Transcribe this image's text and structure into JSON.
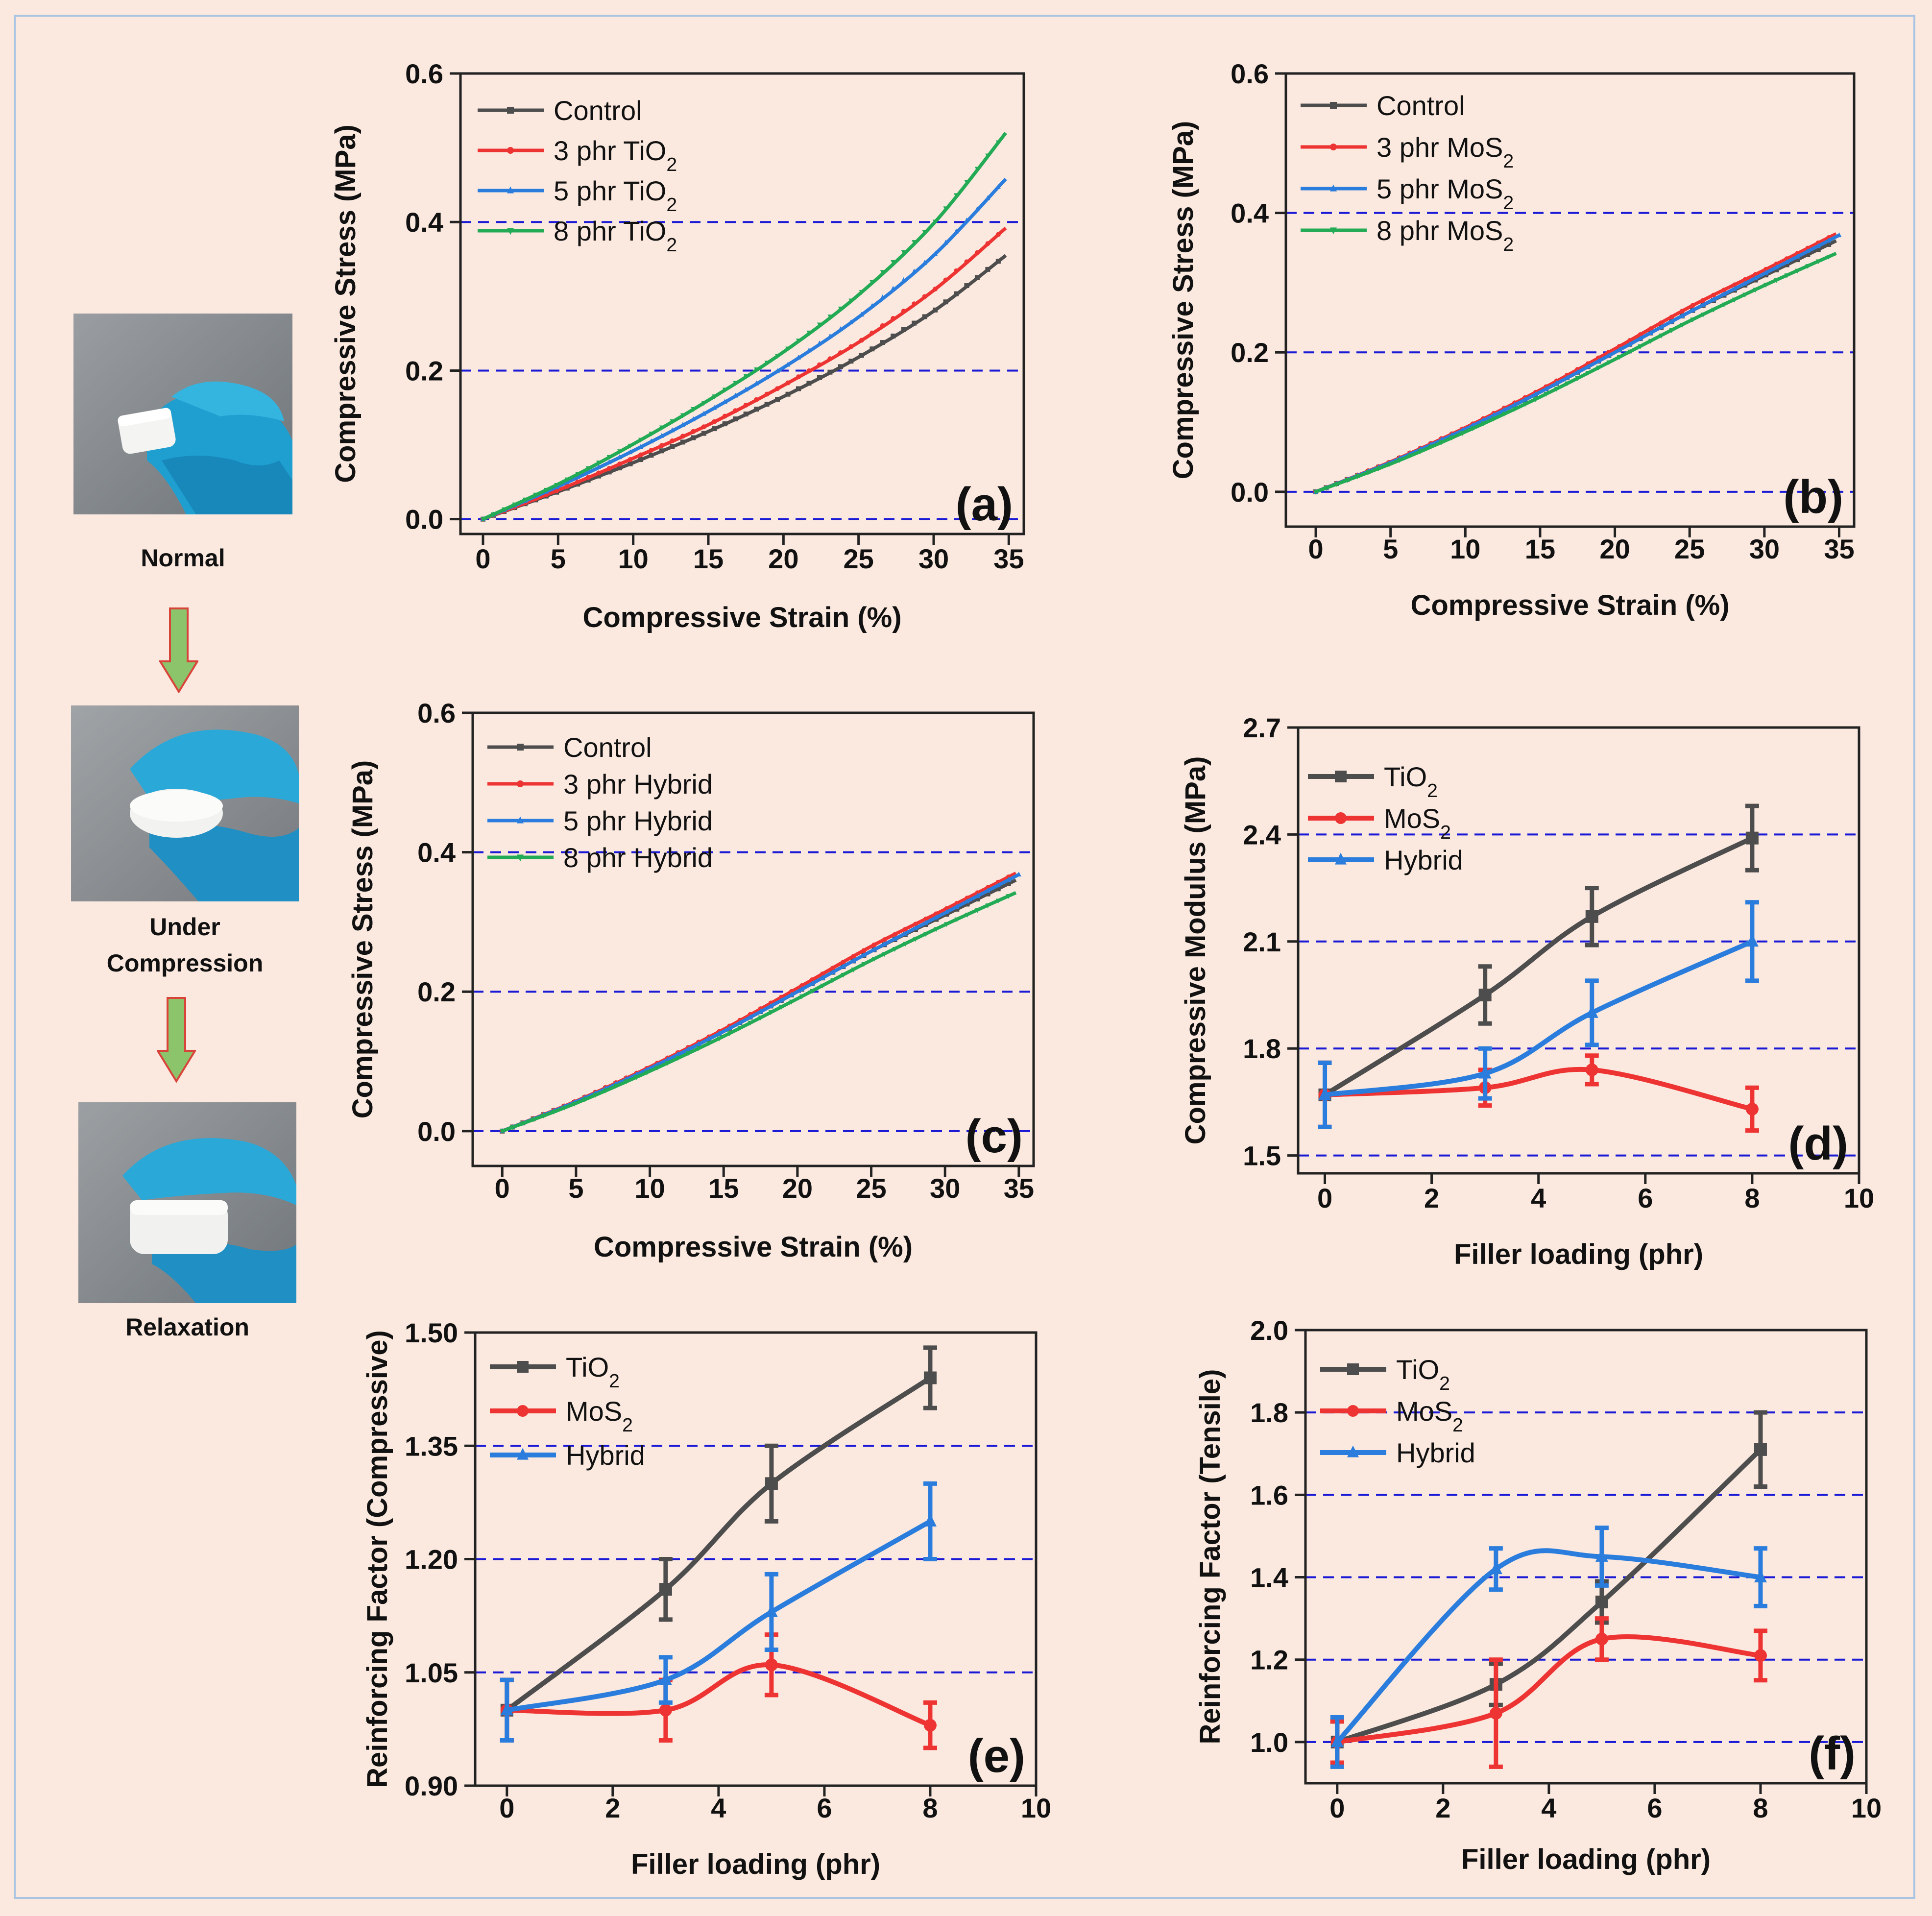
{
  "photos": [
    {
      "caption_lines": [
        "Normal"
      ]
    },
    {
      "caption_lines": [
        "Under",
        "Compression"
      ]
    },
    {
      "caption_lines": [
        "Relaxation"
      ]
    }
  ],
  "colors": {
    "background": "#fbe9df",
    "border": "#a9c3e3",
    "grid": "#1a1ad6",
    "black": "#4d4d4d",
    "red": "#ee3333",
    "blue": "#2a7ddc",
    "green": "#22aa55",
    "arrow_fill": "#8cc46b",
    "arrow_stroke": "#d9443a"
  },
  "chart_data": [
    {
      "id": "a",
      "type": "line",
      "panel_label": "(a)",
      "xlabel": "Compressive Strain (%)",
      "ylabel": "Compressive Stress (MPa)",
      "xlim": [
        -1.5,
        36
      ],
      "ylim": [
        -0.02,
        0.6
      ],
      "xticks": [
        0,
        5,
        10,
        15,
        20,
        25,
        30,
        35
      ],
      "yticks": [
        0.0,
        0.2,
        0.4,
        0.6
      ],
      "ytick_labels": [
        "0.0",
        "0.2",
        "0.4",
        "0.6"
      ],
      "hgrid": [
        0.0,
        0.2,
        0.4
      ],
      "grid": "dashed-horizontal",
      "legend": "top-left",
      "series": [
        {
          "name": "Control",
          "color": "black",
          "marker": "square",
          "x": [
            0,
            5,
            10,
            15,
            20,
            25,
            30,
            34.8
          ],
          "y": [
            0,
            0.037,
            0.076,
            0.118,
            0.165,
            0.218,
            0.28,
            0.355
          ]
        },
        {
          "name": "3 phr TiO2",
          "color": "red",
          "marker": "circle",
          "x": [
            0,
            5,
            10,
            15,
            20,
            25,
            30,
            34.8
          ],
          "y": [
            0,
            0.039,
            0.082,
            0.127,
            0.18,
            0.238,
            0.308,
            0.392
          ]
        },
        {
          "name": "5 phr TiO2",
          "color": "blue",
          "marker": "triangle",
          "x": [
            0,
            5,
            10,
            15,
            20,
            25,
            30,
            34.8
          ],
          "y": [
            0,
            0.044,
            0.092,
            0.145,
            0.204,
            0.272,
            0.355,
            0.458
          ]
        },
        {
          "name": "8 phr TiO2",
          "color": "green",
          "marker": "tri-down",
          "x": [
            0,
            5,
            10,
            15,
            20,
            25,
            30,
            34.8
          ],
          "y": [
            0,
            0.047,
            0.101,
            0.16,
            0.225,
            0.302,
            0.398,
            0.52
          ]
        }
      ]
    },
    {
      "id": "b",
      "type": "line",
      "panel_label": "(b)",
      "xlabel": "Compressive Strain (%)",
      "ylabel": "Compressive Stress (MPa)",
      "xlim": [
        -2,
        36
      ],
      "ylim": [
        -0.05,
        0.6
      ],
      "xticks": [
        0,
        5,
        10,
        15,
        20,
        25,
        30,
        35
      ],
      "yticks": [
        0.0,
        0.2,
        0.4,
        0.6
      ],
      "ytick_labels": [
        "0.0",
        "0.2",
        "0.4",
        "0.6"
      ],
      "hgrid": [
        0.0,
        0.2,
        0.4
      ],
      "grid": "dashed-horizontal",
      "legend": "top-left",
      "series": [
        {
          "name": "Control",
          "color": "black",
          "marker": "square",
          "x": [
            0,
            5,
            10,
            15,
            20,
            25,
            30,
            34.8
          ],
          "y": [
            0,
            0.042,
            0.09,
            0.143,
            0.2,
            0.258,
            0.31,
            0.36
          ]
        },
        {
          "name": "3 phr MoS2",
          "color": "red",
          "marker": "circle",
          "x": [
            0,
            5,
            10,
            15,
            20,
            25,
            30,
            34.8
          ],
          "y": [
            0,
            0.043,
            0.092,
            0.146,
            0.205,
            0.265,
            0.318,
            0.37
          ]
        },
        {
          "name": "5 phr MoS2",
          "color": "blue",
          "marker": "triangle",
          "x": [
            0,
            5,
            10,
            15,
            20,
            25,
            30,
            35
          ],
          "y": [
            0,
            0.042,
            0.09,
            0.143,
            0.2,
            0.258,
            0.313,
            0.368
          ]
        },
        {
          "name": "8 phr MoS2",
          "color": "green",
          "marker": "tri-down",
          "x": [
            0,
            5,
            10,
            15,
            20,
            25,
            30,
            34.8
          ],
          "y": [
            0,
            0.04,
            0.086,
            0.136,
            0.19,
            0.245,
            0.296,
            0.342
          ]
        }
      ]
    },
    {
      "id": "c",
      "type": "line",
      "panel_label": "(c)",
      "xlabel": "Compressive Strain (%)",
      "ylabel": "Compressive Stress (MPa)",
      "xlim": [
        -2,
        36
      ],
      "ylim": [
        -0.05,
        0.6
      ],
      "xticks": [
        0,
        5,
        10,
        15,
        20,
        25,
        30,
        35
      ],
      "yticks": [
        0.0,
        0.2,
        0.4,
        0.6
      ],
      "ytick_labels": [
        "0.0",
        "0.2",
        "0.4",
        "0.6"
      ],
      "hgrid": [
        0.0,
        0.2,
        0.4
      ],
      "grid": "dashed-horizontal",
      "legend": "top-left",
      "series": [
        {
          "name": "Control",
          "color": "black",
          "marker": "square",
          "x": [
            0,
            5,
            10,
            15,
            20,
            25,
            30,
            34.8
          ],
          "y": [
            0,
            0.042,
            0.09,
            0.143,
            0.2,
            0.258,
            0.31,
            0.36
          ]
        },
        {
          "name": "3 phr Hybrid",
          "color": "red",
          "marker": "circle",
          "x": [
            0,
            5,
            10,
            15,
            20,
            25,
            30,
            34.8
          ],
          "y": [
            0,
            0.043,
            0.092,
            0.146,
            0.205,
            0.265,
            0.318,
            0.37
          ]
        },
        {
          "name": "5 phr Hybrid",
          "color": "blue",
          "marker": "triangle",
          "x": [
            0,
            5,
            10,
            15,
            20,
            25,
            30,
            35
          ],
          "y": [
            0,
            0.042,
            0.09,
            0.143,
            0.2,
            0.258,
            0.313,
            0.368
          ]
        },
        {
          "name": "8 phr Hybrid",
          "color": "green",
          "marker": "tri-down",
          "x": [
            0,
            5,
            10,
            15,
            20,
            25,
            30,
            34.8
          ],
          "y": [
            0,
            0.04,
            0.086,
            0.136,
            0.19,
            0.245,
            0.296,
            0.342
          ]
        }
      ]
    },
    {
      "id": "d",
      "type": "line",
      "panel_label": "(d)",
      "xlabel": "Filler loading (phr)",
      "ylabel": "Compressive Modulus (MPa)",
      "xlim": [
        -0.5,
        10
      ],
      "ylim": [
        1.45,
        2.7
      ],
      "xticks": [
        0,
        2,
        4,
        6,
        8,
        10
      ],
      "yticks": [
        1.5,
        1.8,
        2.1,
        2.4,
        2.7
      ],
      "ytick_labels": [
        "1.5",
        "1.8",
        "2.1",
        "2.4",
        "2.7"
      ],
      "hgrid": [
        1.5,
        1.8,
        2.1,
        2.4
      ],
      "grid": "dashed-horizontal",
      "legend": "top-left",
      "series": [
        {
          "name": "TiO2",
          "color": "black",
          "marker": "square",
          "x": [
            0,
            3,
            5,
            8
          ],
          "y": [
            1.67,
            1.95,
            2.17,
            2.39
          ],
          "err": [
            0.09,
            0.08,
            0.08,
            0.09
          ]
        },
        {
          "name": "MoS2",
          "color": "red",
          "marker": "circle",
          "x": [
            0,
            3,
            5,
            8
          ],
          "y": [
            1.67,
            1.69,
            1.74,
            1.63
          ],
          "err": [
            0.09,
            0.05,
            0.04,
            0.06
          ]
        },
        {
          "name": "Hybrid",
          "color": "blue",
          "marker": "triangle",
          "x": [
            0,
            3,
            5,
            8
          ],
          "y": [
            1.67,
            1.73,
            1.9,
            2.1
          ],
          "err": [
            0.09,
            0.07,
            0.09,
            0.11
          ]
        }
      ]
    },
    {
      "id": "e",
      "type": "line",
      "panel_label": "(e)",
      "xlabel": "Filler loading (phr)",
      "ylabel": "Reinforcing Factor (Compressive)",
      "xlim": [
        -0.6,
        10
      ],
      "ylim": [
        0.9,
        1.5
      ],
      "xticks": [
        0,
        2,
        4,
        6,
        8,
        10
      ],
      "yticks": [
        0.9,
        1.05,
        1.2,
        1.35,
        1.5
      ],
      "ytick_labels": [
        "0.90",
        "1.05",
        "1.20",
        "1.35",
        "1.50"
      ],
      "hgrid": [
        1.05,
        1.2,
        1.35
      ],
      "grid": "dashed-horizontal",
      "legend": "top-left",
      "series": [
        {
          "name": "TiO2",
          "color": "black",
          "marker": "square",
          "x": [
            0,
            3,
            5,
            8
          ],
          "y": [
            1.0,
            1.16,
            1.3,
            1.44
          ],
          "err": [
            0.04,
            0.04,
            0.05,
            0.04
          ]
        },
        {
          "name": "MoS2",
          "color": "red",
          "marker": "circle",
          "x": [
            0,
            3,
            5,
            8
          ],
          "y": [
            1.0,
            1.0,
            1.06,
            0.98
          ],
          "err": [
            0.04,
            0.04,
            0.04,
            0.03
          ]
        },
        {
          "name": "Hybrid",
          "color": "blue",
          "marker": "triangle",
          "x": [
            0,
            3,
            5,
            8
          ],
          "y": [
            1.0,
            1.04,
            1.13,
            1.25
          ],
          "err": [
            0.04,
            0.03,
            0.05,
            0.05
          ]
        }
      ]
    },
    {
      "id": "f",
      "type": "line",
      "panel_label": "(f)",
      "xlabel": "Filler loading (phr)",
      "ylabel": "Reinforcing Factor (Tensile)",
      "xlim": [
        -0.6,
        10
      ],
      "ylim": [
        0.9,
        2.0
      ],
      "xticks": [
        0,
        2,
        4,
        6,
        8,
        10
      ],
      "yticks": [
        1.0,
        1.2,
        1.4,
        1.6,
        1.8,
        2.0
      ],
      "ytick_labels": [
        "1.0",
        "1.2",
        "1.4",
        "1.6",
        "1.8",
        "2.0"
      ],
      "hgrid": [
        1.0,
        1.2,
        1.4,
        1.6,
        1.8
      ],
      "grid": "dashed-horizontal",
      "legend": "top-left",
      "series": [
        {
          "name": "TiO2",
          "color": "black",
          "marker": "square",
          "x": [
            0,
            3,
            5,
            8
          ],
          "y": [
            1.0,
            1.14,
            1.34,
            1.71
          ],
          "err": [
            0.05,
            0.05,
            0.05,
            0.09
          ]
        },
        {
          "name": "MoS2",
          "color": "red",
          "marker": "circle",
          "x": [
            0,
            3,
            5,
            8
          ],
          "y": [
            1.0,
            1.07,
            1.25,
            1.21
          ],
          "err": [
            0.05,
            0.13,
            0.05,
            0.06
          ]
        },
        {
          "name": "Hybrid",
          "color": "blue",
          "marker": "triangle",
          "x": [
            0,
            3,
            5,
            8
          ],
          "y": [
            1.0,
            1.42,
            1.45,
            1.4
          ],
          "err": [
            0.06,
            0.05,
            0.07,
            0.07
          ]
        }
      ]
    }
  ]
}
